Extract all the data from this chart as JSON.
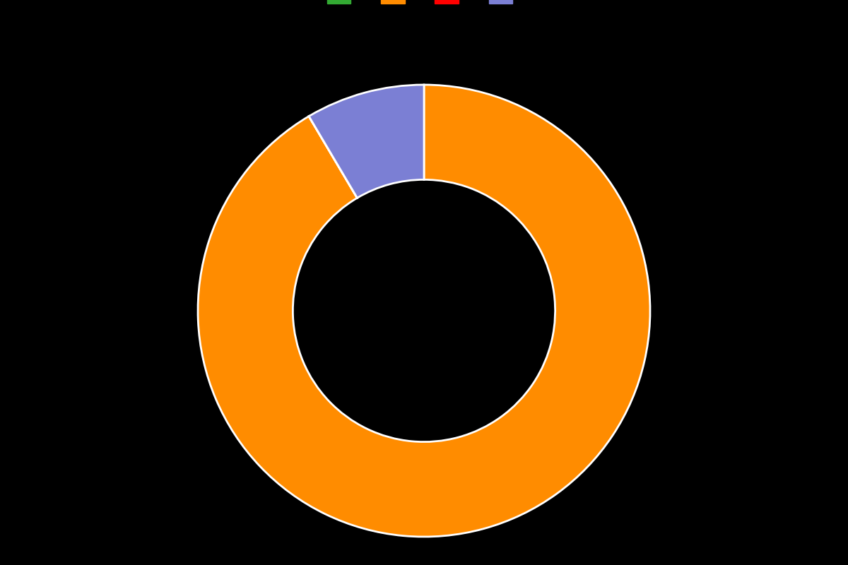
{
  "values": [
    91.5,
    0.001,
    0.001,
    8.5
  ],
  "colors": [
    "#FF8C00",
    "#FF0000",
    "#228B22",
    "#7B7FD4"
  ],
  "legend_colors": [
    "#33AA33",
    "#FF8C00",
    "#FF0000",
    "#7B7FD4"
  ],
  "legend_labels": [
    "",
    "",
    "",
    ""
  ],
  "background_color": "#000000",
  "wedge_linewidth": 2.0,
  "wedge_linecolor": "#ffffff",
  "donut_width": 0.42,
  "startangle": 90,
  "figsize": [
    12.0,
    8.0
  ],
  "dpi": 100
}
